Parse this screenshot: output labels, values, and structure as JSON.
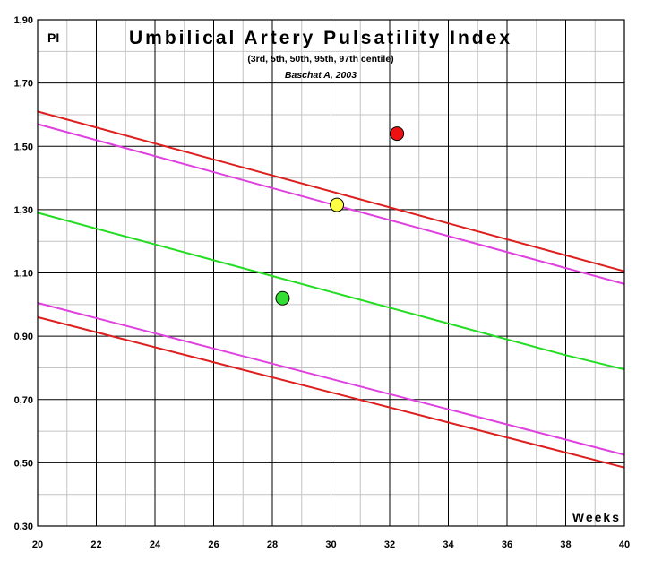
{
  "chart_data": {
    "type": "line",
    "title": "Umbilical Artery Pulsatility Index",
    "subtitle": "(3rd, 5th, 50th, 95th, 97th centile)",
    "author": "Baschat A, 2003",
    "xlabel": "Weeks",
    "ylabel": "PI",
    "xlim": [
      20,
      40
    ],
    "ylim": [
      0.3,
      1.9
    ],
    "x_ticks": [
      20,
      22,
      24,
      26,
      28,
      30,
      32,
      34,
      36,
      38,
      40
    ],
    "x_tick_labels": [
      "20",
      "22",
      "24",
      "26",
      "28",
      "30",
      "32",
      "34",
      "36",
      "38",
      "40"
    ],
    "y_ticks": [
      0.3,
      0.5,
      0.7,
      0.9,
      1.1,
      1.3,
      1.5,
      1.7,
      1.9
    ],
    "y_tick_labels": [
      "0,30",
      "0,50",
      "0,70",
      "0,90",
      "1,10",
      "1,30",
      "1,50",
      "1,70",
      "1,90"
    ],
    "grid": true,
    "series": [
      {
        "color": "#dd1f1f",
        "x": [
          20,
          40
        ],
        "y": [
          1.61,
          1.105
        ]
      },
      {
        "color": "#e040e0",
        "x": [
          20,
          40
        ],
        "y": [
          1.57,
          1.065
        ]
      },
      {
        "color": "#22dd22",
        "x": [
          20,
          22,
          24,
          26,
          28,
          30,
          32,
          34,
          36,
          38,
          40
        ],
        "y": [
          1.29,
          1.24,
          1.19,
          1.14,
          1.09,
          1.04,
          0.99,
          0.94,
          0.89,
          0.84,
          0.795
        ]
      },
      {
        "color": "#e040e0",
        "x": [
          20,
          40
        ],
        "y": [
          1.005,
          0.525
        ]
      },
      {
        "color": "#dd1f1f",
        "x": [
          20,
          40
        ],
        "y": [
          0.96,
          0.485
        ]
      }
    ],
    "points": [
      {
        "x": 32.25,
        "y": 1.54,
        "color": "#ee1111"
      },
      {
        "x": 30.2,
        "y": 1.315,
        "color": "#ffff44"
      },
      {
        "x": 28.35,
        "y": 1.02,
        "color": "#33dd33"
      }
    ]
  }
}
